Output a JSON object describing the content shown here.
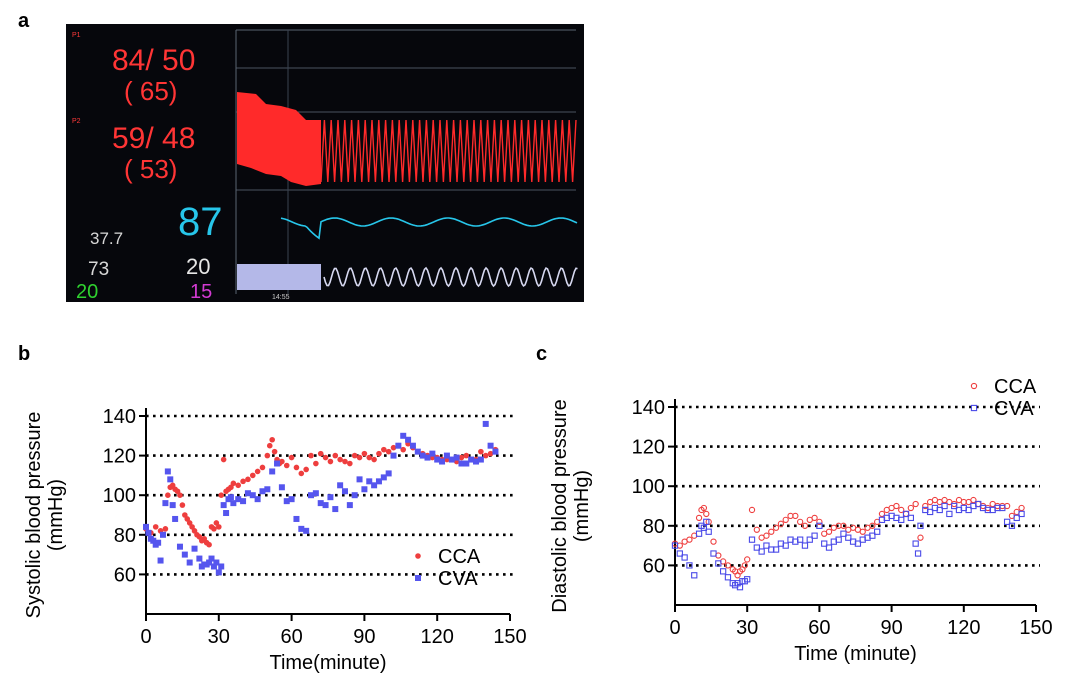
{
  "panels": {
    "a": "a",
    "b": "b",
    "c": "c"
  },
  "monitor": {
    "p1_label": "P1",
    "p1_bp": "84/ 50",
    "p1_mean": "( 65)",
    "p2_label": "P2",
    "p2_bp": "59/ 48",
    "p2_mean": "( 53)",
    "spo2": "87",
    "temp": "37.7",
    "resp_rate": "73",
    "val_20_white": "20",
    "val_20_green": "20",
    "val_15_purple": "15",
    "time_1": "14:55",
    "colors": {
      "pressure": "#ff2a2a",
      "spo2": "#27c6ea",
      "resp": "#b4b8e8",
      "temp": "#d8d8d8",
      "green": "#2fd12f",
      "purple": "#d23ad2"
    }
  },
  "chart_data": [
    {
      "type": "scatter",
      "xlabel": "Time(minute)",
      "ylabel": "Systolic blood pressure (mmHg)",
      "ylabel_lines": [
        "Systolic blood pressure",
        "(mmHg)"
      ],
      "xlim": [
        0,
        150
      ],
      "ylim": [
        40,
        140
      ],
      "xticks": [
        0,
        30,
        60,
        90,
        120,
        150
      ],
      "yticks": [
        60,
        80,
        100,
        120,
        140
      ],
      "grid": "dotted horizontal",
      "legend": "bottom-right",
      "series": [
        {
          "name": "CCA",
          "marker": "filled-circle",
          "color": "#ee3e3e",
          "x": [
            0,
            2,
            4,
            6,
            8,
            9,
            10,
            11,
            12,
            13,
            14,
            15,
            16,
            17,
            18,
            19,
            20,
            21,
            22,
            23,
            24,
            25,
            26,
            27,
            28,
            29,
            30,
            31,
            32,
            33,
            34,
            35,
            36,
            38,
            40,
            42,
            44,
            46,
            48,
            50,
            51,
            52,
            53,
            54,
            55,
            56,
            58,
            60,
            62,
            64,
            66,
            68,
            70,
            72,
            74,
            76,
            78,
            80,
            82,
            84,
            86,
            88,
            90,
            92,
            94,
            96,
            98,
            100,
            102,
            104,
            106,
            108,
            110,
            112,
            114,
            116,
            118,
            120,
            122,
            124,
            126,
            128,
            130,
            132,
            134,
            136,
            138,
            140,
            142,
            144
          ],
          "y": [
            83,
            81,
            84,
            82,
            83,
            100,
            104,
            105,
            103,
            102,
            100,
            95,
            90,
            88,
            86,
            84,
            82,
            80,
            79,
            77,
            78,
            76,
            75,
            84,
            83,
            86,
            84,
            100,
            118,
            102,
            103,
            104,
            106,
            105,
            107,
            108,
            110,
            112,
            114,
            120,
            125,
            128,
            122,
            118,
            116,
            117,
            115,
            119,
            114,
            111,
            113,
            120,
            116,
            121,
            119,
            117,
            120,
            118,
            117,
            116,
            120,
            119,
            121,
            119,
            118,
            121,
            123,
            122,
            124,
            125,
            123,
            126,
            124,
            122,
            121,
            120,
            119,
            119,
            118,
            118,
            118,
            117,
            119,
            120,
            118,
            118,
            122,
            120,
            121,
            123
          ]
        },
        {
          "name": "CVA",
          "marker": "filled-square",
          "color": "#5555ee",
          "x": [
            0,
            1,
            2,
            3,
            4,
            5,
            6,
            7,
            8,
            9,
            10,
            11,
            12,
            14,
            16,
            18,
            20,
            22,
            23,
            24,
            25,
            26,
            27,
            28,
            29,
            30,
            31,
            32,
            33,
            34,
            35,
            36,
            38,
            40,
            42,
            44,
            46,
            48,
            50,
            52,
            54,
            56,
            58,
            60,
            62,
            64,
            66,
            68,
            70,
            72,
            74,
            76,
            78,
            80,
            82,
            84,
            86,
            88,
            90,
            92,
            94,
            96,
            98,
            100,
            102,
            104,
            106,
            108,
            110,
            112,
            114,
            116,
            118,
            120,
            122,
            124,
            126,
            128,
            130,
            132,
            134,
            136,
            138,
            140,
            142,
            144
          ],
          "y": [
            84,
            81,
            78,
            77,
            75,
            76,
            67,
            80,
            96,
            112,
            108,
            95,
            88,
            74,
            70,
            66,
            73,
            68,
            64,
            65,
            65,
            66,
            68,
            64,
            66,
            61,
            64,
            95,
            91,
            98,
            99,
            96,
            98,
            97,
            101,
            100,
            98,
            102,
            103,
            112,
            116,
            104,
            97,
            98,
            88,
            83,
            82,
            100,
            101,
            96,
            95,
            99,
            93,
            105,
            102,
            95,
            100,
            108,
            103,
            107,
            105,
            107,
            109,
            111,
            120,
            125,
            130,
            128,
            125,
            122,
            120,
            119,
            121,
            118,
            117,
            120,
            118,
            119,
            116,
            116,
            118,
            117,
            118,
            136,
            125,
            122
          ]
        }
      ]
    },
    {
      "type": "scatter",
      "xlabel": "Time (minute)",
      "ylabel": "Diastolic blood pressure (mmHg)",
      "ylabel_lines": [
        "Diastolic blood pressure",
        "(mmHg)"
      ],
      "xlim": [
        0,
        150
      ],
      "ylim": [
        40,
        140
      ],
      "xticks": [
        0,
        30,
        60,
        90,
        120,
        150
      ],
      "yticks": [
        60,
        80,
        100,
        120,
        140
      ],
      "grid": "dotted horizontal",
      "legend": "top-right",
      "series": [
        {
          "name": "CCA",
          "marker": "open-circle",
          "color": "#ee3e3e",
          "x": [
            0,
            2,
            4,
            6,
            8,
            10,
            11,
            12,
            13,
            14,
            16,
            18,
            20,
            22,
            24,
            25,
            26,
            27,
            28,
            29,
            30,
            32,
            34,
            36,
            38,
            40,
            42,
            44,
            46,
            48,
            50,
            52,
            54,
            56,
            58,
            60,
            62,
            64,
            66,
            68,
            70,
            72,
            74,
            76,
            78,
            80,
            82,
            84,
            86,
            88,
            90,
            92,
            94,
            96,
            98,
            100,
            102,
            104,
            106,
            108,
            110,
            112,
            114,
            116,
            118,
            120,
            122,
            124,
            126,
            128,
            130,
            132,
            134,
            136,
            138,
            140,
            142,
            144
          ],
          "y": [
            71,
            70,
            72,
            73,
            75,
            84,
            88,
            89,
            86,
            82,
            72,
            65,
            62,
            60,
            58,
            57,
            55,
            57,
            58,
            60,
            63,
            88,
            78,
            74,
            75,
            77,
            79,
            81,
            83,
            85,
            85,
            82,
            80,
            83,
            84,
            82,
            76,
            77,
            79,
            80,
            80,
            78,
            79,
            78,
            77,
            79,
            80,
            82,
            86,
            88,
            89,
            90,
            88,
            86,
            89,
            91,
            74,
            90,
            92,
            93,
            92,
            93,
            92,
            91,
            93,
            92,
            92,
            93,
            91,
            90,
            89,
            91,
            90,
            90,
            90,
            85,
            87,
            89
          ]
        },
        {
          "name": "CVA",
          "marker": "open-square",
          "color": "#4a4ae8",
          "x": [
            0,
            2,
            4,
            6,
            8,
            10,
            11,
            12,
            13,
            14,
            16,
            18,
            20,
            22,
            24,
            25,
            26,
            27,
            28,
            29,
            30,
            32,
            34,
            36,
            38,
            40,
            42,
            44,
            46,
            48,
            50,
            52,
            54,
            56,
            58,
            60,
            62,
            64,
            66,
            68,
            70,
            72,
            74,
            76,
            78,
            80,
            82,
            84,
            86,
            88,
            90,
            92,
            94,
            96,
            98,
            100,
            101,
            102,
            104,
            106,
            108,
            110,
            112,
            114,
            116,
            118,
            120,
            122,
            124,
            126,
            128,
            130,
            132,
            134,
            136,
            138,
            140,
            142,
            144
          ],
          "y": [
            70,
            66,
            64,
            60,
            55,
            76,
            80,
            79,
            82,
            77,
            66,
            61,
            57,
            54,
            51,
            50,
            51,
            49,
            52,
            52,
            53,
            73,
            69,
            67,
            70,
            68,
            68,
            71,
            70,
            73,
            72,
            73,
            70,
            73,
            75,
            80,
            71,
            69,
            72,
            73,
            76,
            74,
            72,
            71,
            73,
            74,
            75,
            77,
            83,
            84,
            85,
            84,
            83,
            86,
            84,
            71,
            66,
            80,
            88,
            87,
            89,
            88,
            90,
            86,
            90,
            88,
            89,
            88,
            90,
            91,
            89,
            88,
            88,
            89,
            89,
            82,
            80,
            84,
            86
          ]
        }
      ]
    }
  ]
}
